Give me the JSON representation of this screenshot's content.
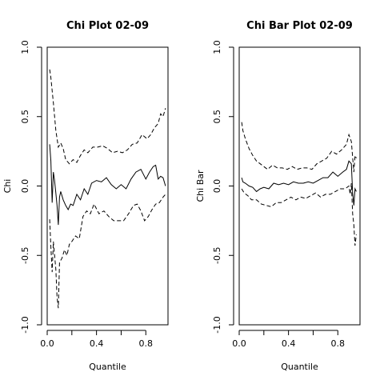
{
  "chart_data": [
    {
      "type": "line",
      "title": "Chi Plot 02-09",
      "xlabel": "Quantile",
      "ylabel": "Chi",
      "xlim": [
        0,
        0.98
      ],
      "ylim": [
        -1,
        1
      ],
      "xticks": [
        0.0,
        0.2,
        0.4,
        0.6,
        0.8
      ],
      "xtick_labels": [
        "0.0",
        "",
        "0.4",
        "",
        "0.8"
      ],
      "yticks": [
        -1.0,
        -0.5,
        0.0,
        0.5,
        1.0
      ],
      "ytick_labels": [
        "-1.0",
        "-0.5",
        "0.0",
        "0.5",
        "1.0"
      ],
      "grid": false,
      "series": [
        {
          "style": "dashed",
          "points": [
            [
              0.02,
              0.84
            ],
            [
              0.03,
              0.78
            ],
            [
              0.05,
              0.6
            ],
            [
              0.07,
              0.4
            ],
            [
              0.09,
              0.28
            ],
            [
              0.11,
              0.31
            ],
            [
              0.13,
              0.27
            ],
            [
              0.15,
              0.19
            ],
            [
              0.18,
              0.16
            ],
            [
              0.21,
              0.19
            ],
            [
              0.24,
              0.17
            ],
            [
              0.27,
              0.22
            ],
            [
              0.3,
              0.26
            ],
            [
              0.33,
              0.24
            ],
            [
              0.37,
              0.28
            ],
            [
              0.41,
              0.28
            ],
            [
              0.45,
              0.29
            ],
            [
              0.49,
              0.27
            ],
            [
              0.53,
              0.24
            ],
            [
              0.57,
              0.25
            ],
            [
              0.61,
              0.24
            ],
            [
              0.65,
              0.26
            ],
            [
              0.69,
              0.3
            ],
            [
              0.73,
              0.31
            ],
            [
              0.77,
              0.37
            ],
            [
              0.81,
              0.34
            ],
            [
              0.84,
              0.37
            ],
            [
              0.87,
              0.42
            ],
            [
              0.9,
              0.45
            ],
            [
              0.92,
              0.52
            ],
            [
              0.94,
              0.5
            ],
            [
              0.96,
              0.56
            ]
          ]
        },
        {
          "style": "solid",
          "points": [
            [
              0.02,
              0.3
            ],
            [
              0.03,
              0.18
            ],
            [
              0.04,
              -0.12
            ],
            [
              0.05,
              0.1
            ],
            [
              0.06,
              0.04
            ],
            [
              0.07,
              -0.05
            ],
            [
              0.08,
              -0.14
            ],
            [
              0.09,
              -0.28
            ],
            [
              0.1,
              -0.08
            ],
            [
              0.11,
              -0.04
            ],
            [
              0.13,
              -0.1
            ],
            [
              0.15,
              -0.14
            ],
            [
              0.17,
              -0.17
            ],
            [
              0.19,
              -0.13
            ],
            [
              0.21,
              -0.14
            ],
            [
              0.24,
              -0.06
            ],
            [
              0.27,
              -0.1
            ],
            [
              0.3,
              -0.02
            ],
            [
              0.33,
              -0.06
            ],
            [
              0.36,
              0.02
            ],
            [
              0.4,
              0.04
            ],
            [
              0.44,
              0.03
            ],
            [
              0.48,
              0.06
            ],
            [
              0.52,
              0.01
            ],
            [
              0.56,
              -0.02
            ],
            [
              0.6,
              0.01
            ],
            [
              0.64,
              -0.02
            ],
            [
              0.68,
              0.05
            ],
            [
              0.72,
              0.1
            ],
            [
              0.76,
              0.12
            ],
            [
              0.8,
              0.05
            ],
            [
              0.83,
              0.1
            ],
            [
              0.86,
              0.14
            ],
            [
              0.88,
              0.15
            ],
            [
              0.9,
              0.05
            ],
            [
              0.92,
              0.07
            ],
            [
              0.94,
              0.06
            ],
            [
              0.96,
              0.0
            ]
          ]
        },
        {
          "style": "dashed",
          "points": [
            [
              0.02,
              -0.24
            ],
            [
              0.03,
              -0.44
            ],
            [
              0.04,
              -0.62
            ],
            [
              0.05,
              -0.4
            ],
            [
              0.07,
              -0.6
            ],
            [
              0.08,
              -0.8
            ],
            [
              0.09,
              -0.88
            ],
            [
              0.1,
              -0.55
            ],
            [
              0.12,
              -0.52
            ],
            [
              0.14,
              -0.46
            ],
            [
              0.16,
              -0.5
            ],
            [
              0.18,
              -0.42
            ],
            [
              0.2,
              -0.4
            ],
            [
              0.23,
              -0.36
            ],
            [
              0.26,
              -0.38
            ],
            [
              0.29,
              -0.22
            ],
            [
              0.32,
              -0.18
            ],
            [
              0.35,
              -0.2
            ],
            [
              0.38,
              -0.13
            ],
            [
              0.42,
              -0.2
            ],
            [
              0.46,
              -0.18
            ],
            [
              0.5,
              -0.22
            ],
            [
              0.54,
              -0.25
            ],
            [
              0.58,
              -0.25
            ],
            [
              0.62,
              -0.25
            ],
            [
              0.66,
              -0.2
            ],
            [
              0.7,
              -0.14
            ],
            [
              0.73,
              -0.13
            ],
            [
              0.76,
              -0.18
            ],
            [
              0.79,
              -0.25
            ],
            [
              0.82,
              -0.22
            ],
            [
              0.85,
              -0.17
            ],
            [
              0.88,
              -0.13
            ],
            [
              0.91,
              -0.12
            ],
            [
              0.94,
              -0.08
            ],
            [
              0.96,
              -0.06
            ]
          ]
        }
      ]
    },
    {
      "type": "line",
      "title": "Chi Bar Plot 02-09",
      "xlabel": "Quantile",
      "ylabel": "Chi Bar",
      "xlim": [
        0,
        0.98
      ],
      "ylim": [
        -1,
        1
      ],
      "xticks": [
        0.0,
        0.2,
        0.4,
        0.6,
        0.8
      ],
      "xtick_labels": [
        "0.0",
        "",
        "0.4",
        "",
        "0.8"
      ],
      "yticks": [
        -1.0,
        -0.5,
        0.0,
        0.5,
        1.0
      ],
      "ytick_labels": [
        "-1.0",
        "-0.5",
        "0.0",
        "0.5",
        "1.0"
      ],
      "grid": false,
      "series": [
        {
          "style": "dashed",
          "points": [
            [
              0.02,
              0.46
            ],
            [
              0.03,
              0.4
            ],
            [
              0.05,
              0.34
            ],
            [
              0.08,
              0.27
            ],
            [
              0.11,
              0.22
            ],
            [
              0.14,
              0.18
            ],
            [
              0.17,
              0.16
            ],
            [
              0.2,
              0.14
            ],
            [
              0.23,
              0.12
            ],
            [
              0.27,
              0.15
            ],
            [
              0.31,
              0.13
            ],
            [
              0.35,
              0.13
            ],
            [
              0.39,
              0.12
            ],
            [
              0.43,
              0.14
            ],
            [
              0.47,
              0.12
            ],
            [
              0.51,
              0.13
            ],
            [
              0.55,
              0.13
            ],
            [
              0.59,
              0.12
            ],
            [
              0.63,
              0.16
            ],
            [
              0.67,
              0.18
            ],
            [
              0.71,
              0.2
            ],
            [
              0.75,
              0.25
            ],
            [
              0.79,
              0.23
            ],
            [
              0.83,
              0.26
            ],
            [
              0.87,
              0.3
            ],
            [
              0.89,
              0.37
            ],
            [
              0.91,
              0.32
            ],
            [
              0.93,
              0.1
            ],
            [
              0.94,
              0.22
            ],
            [
              0.95,
              0.2
            ]
          ]
        },
        {
          "style": "solid",
          "points": [
            [
              0.02,
              0.06
            ],
            [
              0.03,
              0.03
            ],
            [
              0.05,
              0.02
            ],
            [
              0.08,
              0.0
            ],
            [
              0.11,
              -0.01
            ],
            [
              0.14,
              -0.04
            ],
            [
              0.17,
              -0.02
            ],
            [
              0.2,
              -0.01
            ],
            [
              0.24,
              -0.02
            ],
            [
              0.28,
              0.02
            ],
            [
              0.32,
              0.01
            ],
            [
              0.36,
              0.02
            ],
            [
              0.4,
              0.01
            ],
            [
              0.44,
              0.03
            ],
            [
              0.48,
              0.02
            ],
            [
              0.52,
              0.02
            ],
            [
              0.56,
              0.03
            ],
            [
              0.6,
              0.02
            ],
            [
              0.64,
              0.04
            ],
            [
              0.68,
              0.06
            ],
            [
              0.72,
              0.06
            ],
            [
              0.76,
              0.1
            ],
            [
              0.8,
              0.07
            ],
            [
              0.84,
              0.1
            ],
            [
              0.87,
              0.12
            ],
            [
              0.89,
              0.18
            ],
            [
              0.91,
              0.16
            ],
            [
              0.92,
              -0.05
            ],
            [
              0.93,
              -0.14
            ],
            [
              0.94,
              -0.02
            ],
            [
              0.95,
              -0.04
            ]
          ]
        },
        {
          "style": "dashed",
          "points": [
            [
              0.02,
              -0.02
            ],
            [
              0.04,
              -0.05
            ],
            [
              0.07,
              -0.07
            ],
            [
              0.1,
              -0.1
            ],
            [
              0.14,
              -0.1
            ],
            [
              0.18,
              -0.13
            ],
            [
              0.22,
              -0.14
            ],
            [
              0.26,
              -0.15
            ],
            [
              0.3,
              -0.12
            ],
            [
              0.34,
              -0.12
            ],
            [
              0.38,
              -0.1
            ],
            [
              0.42,
              -0.08
            ],
            [
              0.46,
              -0.1
            ],
            [
              0.5,
              -0.08
            ],
            [
              0.54,
              -0.09
            ],
            [
              0.58,
              -0.07
            ],
            [
              0.62,
              -0.05
            ],
            [
              0.66,
              -0.08
            ],
            [
              0.7,
              -0.06
            ],
            [
              0.74,
              -0.06
            ],
            [
              0.78,
              -0.04
            ],
            [
              0.82,
              -0.02
            ],
            [
              0.86,
              -0.02
            ],
            [
              0.89,
              0.0
            ],
            [
              0.9,
              -0.06
            ],
            [
              0.91,
              0.02
            ],
            [
              0.92,
              -0.2
            ],
            [
              0.93,
              -0.28
            ],
            [
              0.94,
              -0.43
            ],
            [
              0.95,
              -0.35
            ]
          ]
        }
      ]
    }
  ]
}
